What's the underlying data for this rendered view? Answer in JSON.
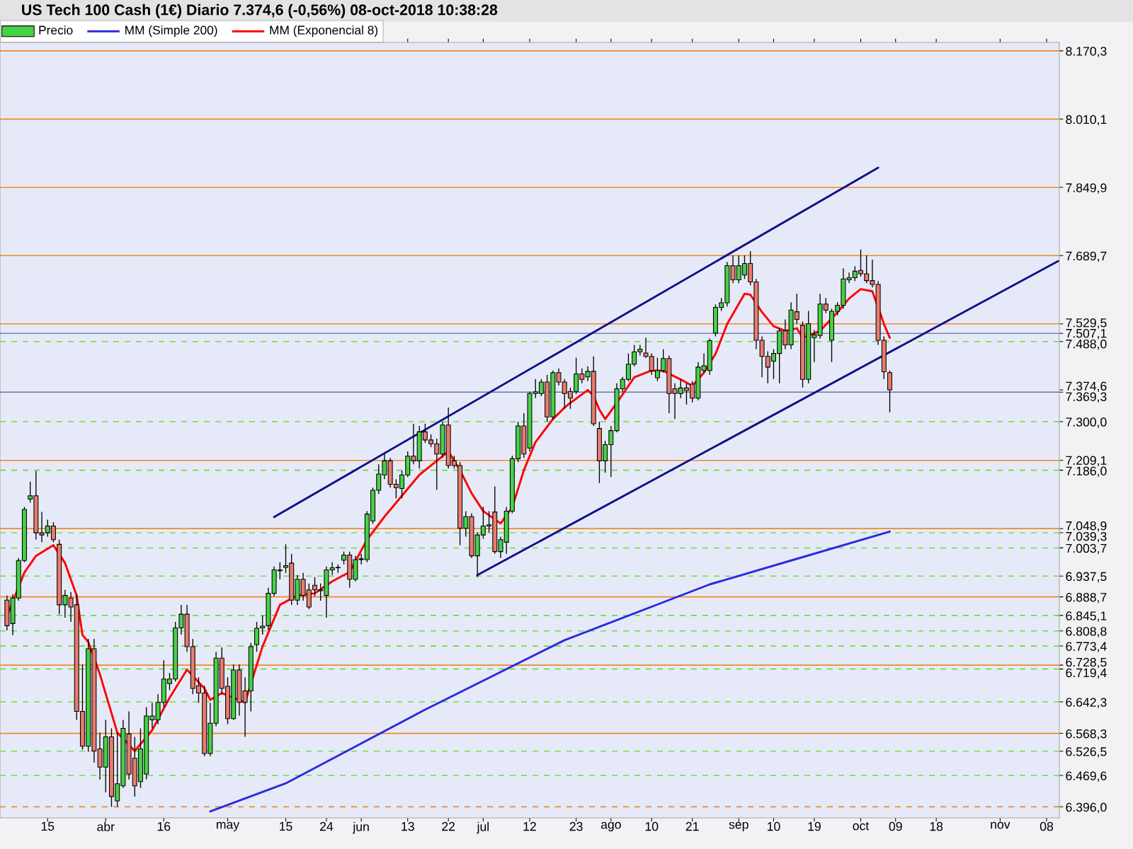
{
  "chart_data": {
    "type": "candlestick",
    "title": "US Tech 100 Cash (1€)   Diario   7.374,6 (-0,56%)   08-oct-2018 10:38:28",
    "legend": "top left",
    "marker": "none",
    "categories": [
      null,
      null,
      null,
      null,
      null,
      null,
      null,
      "15",
      null,
      null,
      null,
      null,
      null,
      null,
      null,
      null,
      null,
      "abr",
      null,
      null,
      null,
      null,
      null,
      null,
      null,
      null,
      null,
      "16",
      null,
      null,
      null,
      null,
      null,
      null,
      null,
      null,
      null,
      null,
      "may",
      null,
      null,
      null,
      null,
      null,
      null,
      null,
      null,
      null,
      "15",
      null,
      null,
      null,
      null,
      null,
      null,
      "24",
      null,
      null,
      null,
      null,
      null,
      "jun",
      null,
      null,
      null,
      null,
      null,
      null,
      null,
      "13",
      null,
      null,
      null,
      null,
      null,
      null,
      "22",
      null,
      null,
      null,
      null,
      null,
      "jul",
      null,
      null,
      null,
      null,
      null,
      null,
      null,
      "12",
      null,
      null,
      null,
      null,
      null,
      null,
      null,
      "23",
      null,
      null,
      null,
      null,
      null,
      "ago",
      null,
      null,
      null,
      null,
      null,
      null,
      "10",
      null,
      null,
      null,
      null,
      null,
      null,
      "21",
      null,
      null,
      null,
      null,
      null,
      null,
      null,
      "sep",
      null,
      null,
      null,
      null,
      null,
      "10",
      null,
      null,
      null,
      null,
      null,
      null,
      "19",
      null,
      null,
      null,
      null,
      null,
      null,
      null,
      "oct",
      null,
      null,
      null,
      null,
      null,
      "09",
      null,
      null,
      null,
      null,
      null,
      null,
      "18",
      null,
      null,
      null,
      null,
      null,
      null,
      null,
      null,
      null,
      null,
      "nov",
      null,
      null,
      null,
      null,
      null,
      null,
      null,
      "08",
      null,
      null
    ],
    "series": [
      {
        "name": "Precio",
        "ohlc": [
          [
            6881,
            6892,
            6810,
            6821
          ],
          [
            6826,
            6895,
            6799,
            6886
          ],
          [
            6886,
            6980,
            6880,
            6974
          ],
          [
            6974,
            7100,
            6970,
            7094
          ],
          [
            7118,
            7159,
            7110,
            7126
          ],
          [
            7126,
            7184,
            7023,
            7039
          ],
          [
            7039,
            7088,
            7017,
            7034
          ],
          [
            7039,
            7070,
            7030,
            7055
          ],
          [
            7055,
            7064,
            7017,
            7023
          ],
          [
            7012,
            7023,
            6848,
            6870
          ],
          [
            6870,
            6905,
            6840,
            6892
          ],
          [
            6886,
            6900,
            6830,
            6865
          ],
          [
            6870,
            6895,
            6600,
            6620
          ],
          [
            6620,
            6730,
            6530,
            6538
          ],
          [
            6538,
            6790,
            6525,
            6767
          ],
          [
            6767,
            6790,
            6500,
            6527
          ],
          [
            6532,
            6570,
            6460,
            6489
          ],
          [
            6489,
            6600,
            6430,
            6560
          ],
          [
            6560,
            6580,
            6396,
            6420
          ],
          [
            6410,
            6570,
            6396,
            6450
          ],
          [
            6445,
            6600,
            6440,
            6580
          ],
          [
            6567,
            6620,
            6460,
            6473
          ],
          [
            6510,
            6560,
            6420,
            6445
          ],
          [
            6455,
            6580,
            6440,
            6532
          ],
          [
            6473,
            6630,
            6460,
            6609
          ],
          [
            6600,
            6640,
            6580,
            6609
          ],
          [
            6600,
            6660,
            6590,
            6641
          ],
          [
            6641,
            6740,
            6630,
            6696
          ],
          [
            6685,
            6710,
            6670,
            6696
          ],
          [
            6696,
            6830,
            6690,
            6816
          ],
          [
            6816,
            6870,
            6800,
            6848
          ],
          [
            6848,
            6870,
            6760,
            6772
          ],
          [
            6772,
            6790,
            6660,
            6674
          ],
          [
            6680,
            6700,
            6640,
            6663
          ],
          [
            6663,
            6680,
            6515,
            6521
          ],
          [
            6521,
            6640,
            6515,
            6592
          ],
          [
            6592,
            6760,
            6585,
            6745
          ],
          [
            6745,
            6770,
            6660,
            6674
          ],
          [
            6679,
            6700,
            6590,
            6603
          ],
          [
            6603,
            6730,
            6600,
            6717
          ],
          [
            6717,
            6730,
            6610,
            6641
          ],
          [
            6668,
            6700,
            6560,
            6641
          ],
          [
            6668,
            6780,
            6620,
            6772
          ],
          [
            6777,
            6830,
            6760,
            6815
          ],
          [
            6816,
            6845,
            6800,
            6820
          ],
          [
            6821,
            6910,
            6810,
            6897
          ],
          [
            6897,
            6960,
            6890,
            6952
          ],
          [
            6950,
            6970,
            6930,
            6952
          ],
          [
            6958,
            7012,
            6945,
            6962
          ],
          [
            6968,
            6990,
            6870,
            6881
          ],
          [
            6881,
            6940,
            6870,
            6930
          ],
          [
            6930,
            6945,
            6880,
            6892
          ],
          [
            6905,
            6920,
            6860,
            6865
          ],
          [
            6916,
            6935,
            6890,
            6905
          ],
          [
            6903,
            6920,
            6880,
            6905
          ],
          [
            6892,
            6960,
            6840,
            6952
          ],
          [
            6952,
            6970,
            6940,
            6957
          ],
          [
            6957,
            6965,
            6945,
            6958
          ],
          [
            6975,
            6995,
            6965,
            6987
          ],
          [
            6987,
            6995,
            6910,
            6930
          ],
          [
            6930,
            6985,
            6925,
            6976
          ],
          [
            6976,
            6990,
            6965,
            6978
          ],
          [
            6976,
            7090,
            6970,
            7083
          ],
          [
            7067,
            7145,
            7060,
            7139
          ],
          [
            7139,
            7200,
            7130,
            7177
          ],
          [
            7175,
            7225,
            7165,
            7208
          ],
          [
            7208,
            7215,
            7145,
            7153
          ],
          [
            7153,
            7165,
            7120,
            7145
          ],
          [
            7143,
            7185,
            7120,
            7175
          ],
          [
            7175,
            7230,
            7170,
            7219
          ],
          [
            7219,
            7295,
            7200,
            7208
          ],
          [
            7208,
            7290,
            7190,
            7276
          ],
          [
            7276,
            7295,
            7250,
            7257
          ],
          [
            7257,
            7270,
            7240,
            7248
          ],
          [
            7248,
            7260,
            7140,
            7224
          ],
          [
            7224,
            7300,
            7215,
            7292
          ],
          [
            7292,
            7333,
            7190,
            7197
          ],
          [
            7208,
            7220,
            7190,
            7197
          ],
          [
            7197,
            7205,
            7010,
            7050
          ],
          [
            7050,
            7090,
            7030,
            7077
          ],
          [
            7077,
            7085,
            6980,
            6985
          ],
          [
            6985,
            7040,
            6935,
            7034
          ],
          [
            7034,
            7100,
            7025,
            7055
          ],
          [
            7055,
            7090,
            7040,
            7058
          ],
          [
            7088,
            7148,
            6990,
            6995
          ],
          [
            6995,
            7030,
            6980,
            7023
          ],
          [
            7017,
            7100,
            6990,
            7090
          ],
          [
            7090,
            7220,
            7085,
            7213
          ],
          [
            7213,
            7300,
            7205,
            7290
          ],
          [
            7290,
            7320,
            7215,
            7224
          ],
          [
            7238,
            7370,
            7230,
            7366
          ],
          [
            7366,
            7400,
            7355,
            7370
          ],
          [
            7366,
            7400,
            7360,
            7393
          ],
          [
            7393,
            7410,
            7300,
            7311
          ],
          [
            7311,
            7420,
            7305,
            7415
          ],
          [
            7415,
            7425,
            7385,
            7393
          ],
          [
            7393,
            7400,
            7330,
            7366
          ],
          [
            7371,
            7380,
            7330,
            7355
          ],
          [
            7371,
            7450,
            7365,
            7412
          ],
          [
            7412,
            7425,
            7390,
            7399
          ],
          [
            7405,
            7430,
            7395,
            7418
          ],
          [
            7418,
            7453,
            7290,
            7295
          ],
          [
            7284,
            7300,
            7156,
            7208
          ],
          [
            7208,
            7255,
            7180,
            7246
          ],
          [
            7246,
            7290,
            7170,
            7279
          ],
          [
            7279,
            7390,
            7275,
            7377
          ],
          [
            7377,
            7405,
            7370,
            7399
          ],
          [
            7399,
            7460,
            7395,
            7435
          ],
          [
            7435,
            7480,
            7430,
            7464
          ],
          [
            7464,
            7480,
            7455,
            7470
          ],
          [
            7461,
            7497,
            7450,
            7453
          ],
          [
            7453,
            7460,
            7410,
            7420
          ],
          [
            7403,
            7450,
            7395,
            7420
          ],
          [
            7420,
            7470,
            7415,
            7448
          ],
          [
            7448,
            7455,
            7320,
            7366
          ],
          [
            7377,
            7390,
            7306,
            7366
          ],
          [
            7366,
            7400,
            7355,
            7379
          ],
          [
            7379,
            7390,
            7340,
            7373
          ],
          [
            7388,
            7395,
            7345,
            7355
          ],
          [
            7355,
            7440,
            7350,
            7428
          ],
          [
            7420,
            7460,
            7415,
            7431
          ],
          [
            7420,
            7495,
            7410,
            7490
          ],
          [
            7508,
            7575,
            7500,
            7568
          ],
          [
            7568,
            7590,
            7560,
            7579
          ],
          [
            7579,
            7675,
            7570,
            7666
          ],
          [
            7666,
            7690,
            7625,
            7633
          ],
          [
            7633,
            7690,
            7625,
            7666
          ],
          [
            7644,
            7690,
            7635,
            7671
          ],
          [
            7671,
            7700,
            7620,
            7628
          ],
          [
            7628,
            7635,
            7470,
            7491
          ],
          [
            7491,
            7500,
            7404,
            7453
          ],
          [
            7453,
            7465,
            7390,
            7428
          ],
          [
            7442,
            7470,
            7400,
            7460
          ],
          [
            7460,
            7520,
            7390,
            7513
          ],
          [
            7513,
            7540,
            7470,
            7480
          ],
          [
            7480,
            7580,
            7470,
            7562
          ],
          [
            7558,
            7600,
            7530,
            7540
          ],
          [
            7526,
            7535,
            7380,
            7399
          ],
          [
            7399,
            7560,
            7390,
            7530
          ],
          [
            7497,
            7515,
            7440,
            7504
          ],
          [
            7502,
            7600,
            7495,
            7576
          ],
          [
            7576,
            7590,
            7555,
            7562
          ],
          [
            7491,
            7565,
            7440,
            7559
          ],
          [
            7559,
            7580,
            7550,
            7573
          ],
          [
            7573,
            7660,
            7565,
            7635
          ],
          [
            7633,
            7650,
            7625,
            7638
          ],
          [
            7638,
            7665,
            7630,
            7653
          ],
          [
            7655,
            7704,
            7640,
            7647
          ],
          [
            7647,
            7690,
            7625,
            7631
          ],
          [
            7631,
            7680,
            7615,
            7622
          ],
          [
            7622,
            7630,
            7480,
            7491
          ],
          [
            7491,
            7500,
            7400,
            7417
          ],
          [
            7415,
            7420,
            7322,
            7374.6
          ],
          null,
          null,
          null,
          null,
          null,
          null,
          null,
          null,
          null,
          null,
          null,
          null,
          null,
          null,
          null,
          null,
          null,
          null,
          null,
          null,
          null,
          null,
          null,
          null,
          null,
          null,
          null,
          null,
          null
        ]
      },
      {
        "name": "MM (Simple 200)",
        "type": "line",
        "color": "#2a2ae0",
        "values": [
          null,
          null,
          null,
          null,
          null,
          null,
          null,
          null,
          null,
          null,
          null,
          null,
          null,
          null,
          null,
          null,
          null,
          null,
          null,
          null,
          null,
          null,
          null,
          null,
          null,
          null,
          null,
          null,
          null,
          null,
          null,
          null,
          null,
          null,
          null,
          6385,
          null,
          null,
          null,
          null,
          null,
          null,
          null,
          null,
          null,
          null,
          null,
          null,
          6451,
          null,
          null,
          null,
          null,
          null,
          null,
          null,
          null,
          null,
          null,
          null,
          null,
          null,
          null,
          null,
          null,
          null,
          null,
          null,
          null,
          null,
          null,
          null,
          6624,
          null,
          null,
          null,
          null,
          null,
          null,
          null,
          null,
          null,
          null,
          null,
          null,
          null,
          null,
          null,
          null,
          null,
          null,
          null,
          null,
          null,
          null,
          null,
          6787,
          null,
          null,
          null,
          null,
          null,
          null,
          null,
          null,
          null,
          null,
          null,
          null,
          null,
          null,
          null,
          null,
          null,
          null,
          null,
          null,
          null,
          null,
          null,
          null,
          6918,
          null,
          null,
          null,
          null,
          null,
          null,
          null,
          null,
          null,
          null,
          null,
          null,
          null,
          6974,
          null,
          null,
          null,
          null,
          null,
          null,
          null,
          null,
          null,
          null,
          null,
          null,
          null,
          null,
          null,
          null,
          7042,
          null,
          null,
          null,
          null,
          null,
          null,
          null,
          null,
          null,
          null,
          null,
          null,
          null,
          null,
          null,
          null,
          null,
          null,
          null,
          null,
          null,
          null,
          null,
          null,
          null,
          null,
          null,
          null,
          null
        ]
      },
      {
        "name": "MM (Exponencial 8)",
        "type": "line",
        "color": "#ff0000",
        "values": [
          6843,
          null,
          null,
          6946,
          null,
          6985,
          null,
          null,
          7010,
          null,
          6968,
          null,
          6892,
          6799,
          6783,
          null,
          6707,
          null,
          null,
          6570,
          null,
          null,
          6527,
          null,
          null,
          6576,
          null,
          null,
          6652,
          null,
          null,
          6718,
          null,
          null,
          6674,
          6647,
          null,
          6663,
          null,
          6652,
          null,
          6641,
          null,
          null,
          6772,
          null,
          null,
          6870,
          null,
          null,
          6892,
          null,
          null,
          6897,
          null,
          null,
          6925,
          null,
          null,
          6947,
          null,
          null,
          7023,
          null,
          null,
          7077,
          null,
          null,
          7126,
          null,
          null,
          7175,
          null,
          null,
          7208,
          null,
          7230,
          null,
          7186,
          null,
          7132,
          null,
          7090,
          null,
          null,
          7061,
          null,
          7099,
          null,
          7186,
          null,
          7252,
          null,
          null,
          7306,
          null,
          7333,
          7344,
          null,
          null,
          7374,
          7361,
          7328,
          7306,
          null,
          7344,
          null,
          null,
          7404,
          null,
          null,
          7420,
          null,
          7419,
          null,
          null,
          7399,
          null,
          7384,
          null,
          7415,
          null,
          7459,
          null,
          7529,
          null,
          null,
          7600,
          7598,
          null,
          7557,
          null,
          7524,
          null,
          7513,
          null,
          7519,
          7497,
          null,
          null,
          7513,
          null,
          null,
          7557,
          null,
          7589,
          null,
          7611,
          null,
          7606,
          7568,
          7529,
          7497,
          null,
          null,
          null,
          null,
          null,
          null,
          null,
          null,
          null,
          null,
          null,
          null,
          null,
          null,
          null,
          null,
          null,
          null,
          null,
          null,
          null,
          null,
          null,
          null,
          null,
          null,
          null,
          null,
          null
        ]
      },
      {
        "type": "line",
        "color": "#10108a",
        "values": [
          null,
          null,
          null,
          null,
          null,
          null,
          null,
          null,
          null,
          null,
          null,
          null,
          null,
          null,
          null,
          null,
          null,
          null,
          null,
          null,
          null,
          null,
          null,
          null,
          null,
          null,
          null,
          null,
          null,
          null,
          null,
          null,
          null,
          null,
          null,
          null,
          null,
          null,
          null,
          null,
          null,
          null,
          null,
          null,
          null,
          null,
          7076,
          null,
          null,
          null,
          null,
          null,
          null,
          null,
          null,
          null,
          null,
          null,
          null,
          null,
          null,
          null,
          null,
          null,
          null,
          null,
          null,
          null,
          null,
          null,
          null,
          null,
          null,
          null,
          null,
          null,
          null,
          null,
          null,
          null,
          null,
          null,
          null,
          null,
          null,
          null,
          null,
          null,
          null,
          null,
          null,
          null,
          null,
          null,
          null,
          null,
          null,
          null,
          null,
          null,
          null,
          null,
          null,
          null,
          null,
          null,
          null,
          null,
          null,
          null,
          null,
          null,
          null,
          null,
          null,
          null,
          null,
          null,
          null,
          null,
          null,
          null,
          null,
          null,
          null,
          null,
          null,
          null,
          null,
          null,
          null,
          null,
          null,
          null,
          null,
          null,
          null,
          null,
          null,
          null,
          null,
          null,
          null,
          null,
          null,
          null,
          null,
          null,
          null,
          null,
          7896,
          null,
          null,
          null,
          null,
          null,
          null,
          null,
          null,
          null,
          null,
          null,
          null,
          null,
          null,
          null,
          null,
          null,
          null,
          null,
          null,
          null,
          null,
          null,
          null,
          null,
          null,
          null,
          null,
          null,
          null,
          null
        ]
      },
      {
        "type": "line",
        "color": "#10108a",
        "values": [
          null,
          null,
          null,
          null,
          null,
          null,
          null,
          null,
          null,
          null,
          null,
          null,
          null,
          null,
          null,
          null,
          null,
          null,
          null,
          null,
          null,
          null,
          null,
          null,
          null,
          null,
          null,
          null,
          null,
          null,
          null,
          null,
          null,
          null,
          null,
          null,
          null,
          null,
          null,
          null,
          null,
          null,
          null,
          null,
          null,
          null,
          null,
          null,
          null,
          null,
          null,
          null,
          null,
          null,
          null,
          null,
          null,
          null,
          null,
          null,
          null,
          null,
          null,
          null,
          null,
          null,
          null,
          null,
          null,
          null,
          null,
          null,
          null,
          null,
          null,
          null,
          null,
          null,
          null,
          null,
          null,
          6940,
          null,
          null,
          null,
          null,
          null,
          null,
          null,
          null,
          null,
          null,
          null,
          null,
          null,
          null,
          null,
          null,
          null,
          null,
          null,
          null,
          null,
          null,
          null,
          null,
          null,
          null,
          null,
          null,
          null,
          null,
          null,
          null,
          null,
          null,
          null,
          null,
          null,
          null,
          null,
          null,
          null,
          null,
          null,
          null,
          null,
          null,
          null,
          null,
          null,
          null,
          null,
          null,
          null,
          null,
          null,
          null,
          null,
          null,
          null,
          null,
          null,
          null,
          null,
          null,
          null,
          null,
          null,
          null,
          null,
          null,
          null,
          null,
          null,
          null,
          null,
          null,
          null,
          null,
          null,
          null,
          null,
          null,
          null,
          null,
          null,
          null,
          null,
          null,
          null,
          null,
          null,
          null,
          null,
          null,
          null,
          null,
          null,
          null,
          null,
          7677
        ]
      }
    ],
    "ylim": [
      6370,
      8190
    ],
    "yticks": [
      {
        "value": 8170.3,
        "label": "8.170,3"
      },
      {
        "value": 8010.1,
        "label": "8.010,1"
      },
      {
        "value": 7849.9,
        "label": "7.849,9"
      },
      {
        "value": 7689.7,
        "label": "7.689,7"
      },
      {
        "value": 7529.5,
        "label": "7.529,5"
      },
      {
        "value": 7507.1,
        "label": "7.507,1"
      },
      {
        "value": 7488.0,
        "label": "7.488,0"
      },
      {
        "value": 7374.6,
        "label": "7.374,6"
      },
      {
        "value": 7369.3,
        "label": "7.369,3"
      },
      {
        "value": 7300.0,
        "label": "7.300,0"
      },
      {
        "value": 7209.1,
        "label": "7.209,1"
      },
      {
        "value": 7186.0,
        "label": "7.186,0"
      },
      {
        "value": 7048.9,
        "label": "7.048,9"
      },
      {
        "value": 7039.3,
        "label": "7.039,3"
      },
      {
        "value": 7003.7,
        "label": "7.003,7"
      },
      {
        "value": 6937.5,
        "label": "6.937,5"
      },
      {
        "value": 6888.7,
        "label": "6.888,7"
      },
      {
        "value": 6845.1,
        "label": "6.845,1"
      },
      {
        "value": 6808.8,
        "label": "6.808,8"
      },
      {
        "value": 6773.4,
        "label": "6.773,4"
      },
      {
        "value": 6728.5,
        "label": "6.728,5"
      },
      {
        "value": 6719.4,
        "label": "6.719,4"
      },
      {
        "value": 6642.3,
        "label": "6.642,3"
      },
      {
        "value": 6568.3,
        "label": "6.568,3"
      },
      {
        "value": 6526.5,
        "label": "6.526,5"
      },
      {
        "value": 6469.6,
        "label": "6.469,6"
      },
      {
        "value": 6396.0,
        "label": "6.396,0"
      }
    ],
    "ref_lines": [
      {
        "axis": "y",
        "value": 8170.3,
        "color": "#f08a24"
      },
      {
        "axis": "y",
        "value": 8010.1,
        "color": "#f08a24"
      },
      {
        "axis": "y",
        "value": 7849.9,
        "color": "#f08a24"
      },
      {
        "axis": "y",
        "value": 7689.7,
        "color": "#f08a24"
      },
      {
        "axis": "y",
        "value": 7529.5,
        "color": "#f08a24"
      },
      {
        "axis": "y",
        "value": 7507.1,
        "color": "#7c84a8"
      },
      {
        "axis": "y",
        "value": 7488.0,
        "color": "#66e03c",
        "line_style": "dashed"
      },
      {
        "axis": "y",
        "value": 7369.3,
        "color": "#6a72a0"
      },
      {
        "axis": "y",
        "value": 7300.0,
        "color": "#66e03c",
        "line_style": "dashed"
      },
      {
        "axis": "y",
        "value": 7209.1,
        "color": "#f08a24"
      },
      {
        "axis": "y",
        "value": 7186.0,
        "color": "#66e03c",
        "line_style": "dashed"
      },
      {
        "axis": "y",
        "value": 7048.9,
        "color": "#f08a24"
      },
      {
        "axis": "y",
        "value": 7039.3,
        "color": "#66e03c",
        "line_style": "dashed"
      },
      {
        "axis": "y",
        "value": 7003.7,
        "color": "#66e03c",
        "line_style": "dashed"
      },
      {
        "axis": "y",
        "value": 6937.5,
        "color": "#66e03c",
        "line_style": "dashed"
      },
      {
        "axis": "y",
        "value": 6888.7,
        "color": "#f08a24"
      },
      {
        "axis": "y",
        "value": 6845.1,
        "color": "#66e03c",
        "line_style": "dashed"
      },
      {
        "axis": "y",
        "value": 6808.8,
        "color": "#66e03c",
        "line_style": "dashed"
      },
      {
        "axis": "y",
        "value": 6773.4,
        "color": "#66e03c",
        "line_style": "dashed"
      },
      {
        "axis": "y",
        "value": 6728.5,
        "color": "#f08a24"
      },
      {
        "axis": "y",
        "value": 6719.4,
        "color": "#66e03c",
        "line_style": "dashed"
      },
      {
        "axis": "y",
        "value": 6642.3,
        "color": "#66e03c",
        "line_style": "dashed"
      },
      {
        "axis": "y",
        "value": 6568.3,
        "color": "#f08a24"
      },
      {
        "axis": "y",
        "value": 6526.5,
        "color": "#66e03c",
        "line_style": "dashed"
      },
      {
        "axis": "y",
        "value": 6469.6,
        "color": "#66e03c",
        "line_style": "dashed"
      },
      {
        "axis": "y",
        "value": 6396.0,
        "color": "#f08a24",
        "line_style": "dashed"
      }
    ]
  }
}
